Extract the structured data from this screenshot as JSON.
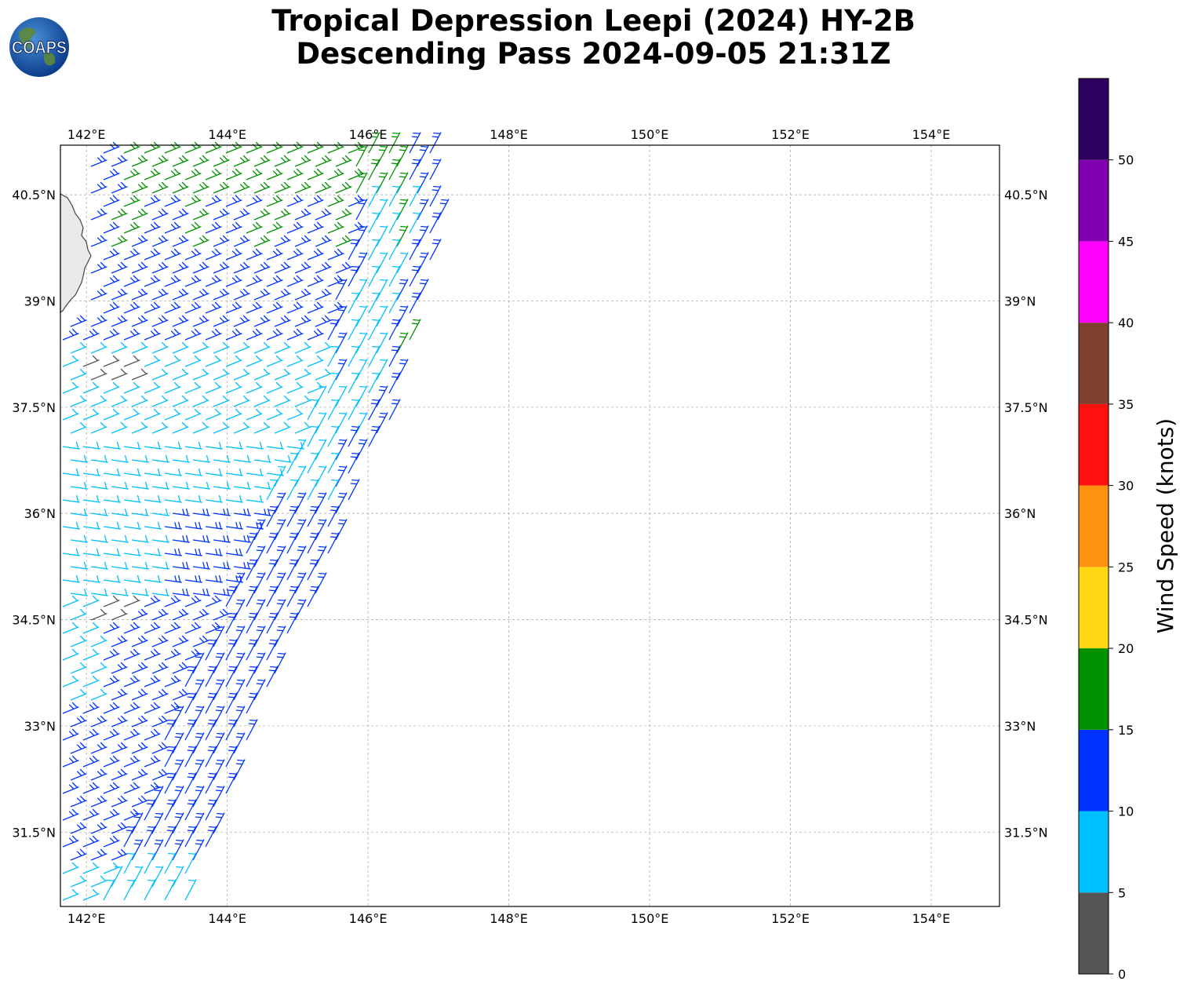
{
  "title": {
    "line1": "Tropical Depression Leepi (2024) HY-2B",
    "line2": "Descending Pass 2024-09-05 21:31Z"
  },
  "logo": {
    "text": "COAPS",
    "icon": "globe-icon"
  },
  "map": {
    "lon_labels": [
      "142°E",
      "144°E",
      "146°E",
      "148°E",
      "150°E",
      "152°E",
      "154°E"
    ],
    "lon_values": [
      142,
      144,
      146,
      148,
      150,
      152,
      154
    ],
    "lat_labels": [
      "40.5°N",
      "39°N",
      "37.5°N",
      "36°N",
      "34.5°N",
      "33°N",
      "31.5°N"
    ],
    "lat_values": [
      40.5,
      39,
      37.5,
      36,
      34.5,
      33,
      31.5
    ],
    "extent": {
      "lon_min": 141.63,
      "lon_max": 154.97,
      "lat_min": 30.45,
      "lat_max": 41.2
    },
    "grid": true
  },
  "colorbar": {
    "label": "Wind Speed (knots)",
    "ticks": [
      0,
      5,
      10,
      15,
      20,
      25,
      30,
      35,
      40,
      45,
      50
    ],
    "tick_labels": [
      "0",
      "5",
      "10",
      "15",
      "20",
      "25",
      "30",
      "35",
      "40",
      "45",
      "50"
    ],
    "bins": [
      {
        "min": 0,
        "max": 5,
        "color": "#555555"
      },
      {
        "min": 5,
        "max": 10,
        "color": "#00bfff"
      },
      {
        "min": 10,
        "max": 15,
        "color": "#0033ff"
      },
      {
        "min": 15,
        "max": 20,
        "color": "#009100"
      },
      {
        "min": 20,
        "max": 25,
        "color": "#ffd712"
      },
      {
        "min": 25,
        "max": 30,
        "color": "#ff9110"
      },
      {
        "min": 30,
        "max": 35,
        "color": "#ff1010"
      },
      {
        "min": 35,
        "max": 40,
        "color": "#804030"
      },
      {
        "min": 40,
        "max": 45,
        "color": "#ff00ff"
      },
      {
        "min": 45,
        "max": 50,
        "color": "#8000b0"
      },
      {
        "min": 50,
        "max": 55,
        "color": "#2d005f"
      }
    ]
  },
  "barb_colors": {
    "calm": "#555555",
    "light": "#00bfff",
    "moderate": "#0033ff",
    "fresh": "#009100",
    "strong": "#ffd712"
  }
}
